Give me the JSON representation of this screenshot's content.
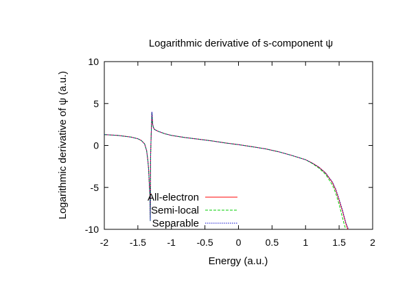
{
  "chart_data": {
    "type": "line",
    "title": "Logarithmic derivative of s-component ψ",
    "xlabel": "Energy (a.u.)",
    "ylabel": "Logarithmic derivative of ψ (a.u.)",
    "xlim": [
      -2,
      2
    ],
    "ylim": [
      -10,
      10
    ],
    "xticks": [
      "-2",
      "-1.5",
      "-1",
      "-0.5",
      "0",
      "0.5",
      "1",
      "1.5",
      "2"
    ],
    "yticks": [
      "10",
      "5",
      "0",
      "-5",
      "-10"
    ],
    "grid": false,
    "legend_position": "bottom-left",
    "series": [
      {
        "name": "All-electron",
        "color": "#ff0000",
        "style": "solid",
        "x": [
          -2.0,
          -1.8,
          -1.6,
          -1.5,
          -1.45,
          -1.4,
          -1.37,
          -1.35,
          -1.34,
          -1.33,
          -1.32,
          -1.315,
          -1.31,
          -1.305,
          -1.3,
          -1.295,
          -1.29,
          -1.285,
          -1.28,
          -1.27,
          -1.26,
          -1.25,
          -1.2,
          -1.1,
          -1.0,
          -0.8,
          -0.6,
          -0.4,
          -0.2,
          0.0,
          0.2,
          0.4,
          0.6,
          0.8,
          1.0,
          1.1,
          1.2,
          1.3,
          1.4,
          1.45,
          1.5,
          1.55,
          1.6,
          1.63
        ],
        "y": [
          1.3,
          1.2,
          1.0,
          0.8,
          0.6,
          0.2,
          -0.6,
          -1.8,
          -2.8,
          -4.5,
          -6.0,
          -9.0,
          -1.5,
          0.2,
          1.5,
          2.8,
          4.0,
          3.2,
          2.6,
          2.2,
          2.0,
          1.9,
          1.7,
          1.4,
          1.2,
          0.95,
          0.75,
          0.55,
          0.3,
          0.1,
          -0.15,
          -0.4,
          -0.75,
          -1.2,
          -1.7,
          -2.1,
          -2.6,
          -3.3,
          -4.4,
          -5.3,
          -6.5,
          -7.8,
          -9.3,
          -10.0
        ]
      },
      {
        "name": "Semi-local",
        "color": "#00cc00",
        "style": "dashed",
        "x": [
          -2.0,
          -1.8,
          -1.6,
          -1.5,
          -1.45,
          -1.4,
          -1.37,
          -1.35,
          -1.34,
          -1.33,
          -1.32,
          -1.315,
          -1.31,
          -1.305,
          -1.3,
          -1.295,
          -1.29,
          -1.285,
          -1.28,
          -1.27,
          -1.26,
          -1.25,
          -1.2,
          -1.1,
          -1.0,
          -0.8,
          -0.6,
          -0.4,
          -0.2,
          0.0,
          0.2,
          0.4,
          0.6,
          0.8,
          1.0,
          1.1,
          1.2,
          1.3,
          1.4,
          1.45,
          1.5,
          1.55,
          1.58,
          1.6
        ],
        "y": [
          1.3,
          1.2,
          1.0,
          0.8,
          0.6,
          0.2,
          -0.6,
          -1.8,
          -2.8,
          -4.5,
          -6.0,
          -9.0,
          -1.5,
          0.2,
          1.5,
          2.8,
          4.0,
          3.2,
          2.6,
          2.2,
          2.0,
          1.9,
          1.7,
          1.4,
          1.2,
          0.95,
          0.75,
          0.55,
          0.3,
          0.1,
          -0.15,
          -0.4,
          -0.75,
          -1.2,
          -1.7,
          -2.15,
          -2.7,
          -3.45,
          -4.7,
          -5.7,
          -7.0,
          -8.6,
          -9.5,
          -10.0
        ]
      },
      {
        "name": "Separable",
        "color": "#0000cc",
        "style": "dotted",
        "x": [
          -2.0,
          -1.8,
          -1.6,
          -1.5,
          -1.45,
          -1.4,
          -1.37,
          -1.35,
          -1.34,
          -1.33,
          -1.32,
          -1.315,
          -1.31,
          -1.305,
          -1.3,
          -1.295,
          -1.29,
          -1.285,
          -1.28,
          -1.27,
          -1.26,
          -1.25,
          -1.2,
          -1.1,
          -1.0,
          -0.8,
          -0.6,
          -0.4,
          -0.2,
          0.0,
          0.2,
          0.4,
          0.6,
          0.8,
          1.0,
          1.1,
          1.2,
          1.3,
          1.4,
          1.45,
          1.5,
          1.55,
          1.6,
          1.64
        ],
        "y": [
          1.3,
          1.2,
          1.0,
          0.8,
          0.6,
          0.2,
          -0.6,
          -1.8,
          -2.8,
          -4.5,
          -6.0,
          -9.0,
          -1.5,
          0.2,
          1.5,
          2.8,
          4.0,
          3.2,
          2.6,
          2.2,
          2.0,
          1.9,
          1.7,
          1.4,
          1.2,
          0.95,
          0.75,
          0.55,
          0.3,
          0.1,
          -0.15,
          -0.4,
          -0.75,
          -1.2,
          -1.7,
          -2.1,
          -2.6,
          -3.3,
          -4.35,
          -5.2,
          -6.4,
          -7.7,
          -9.2,
          -10.0
        ]
      }
    ]
  }
}
